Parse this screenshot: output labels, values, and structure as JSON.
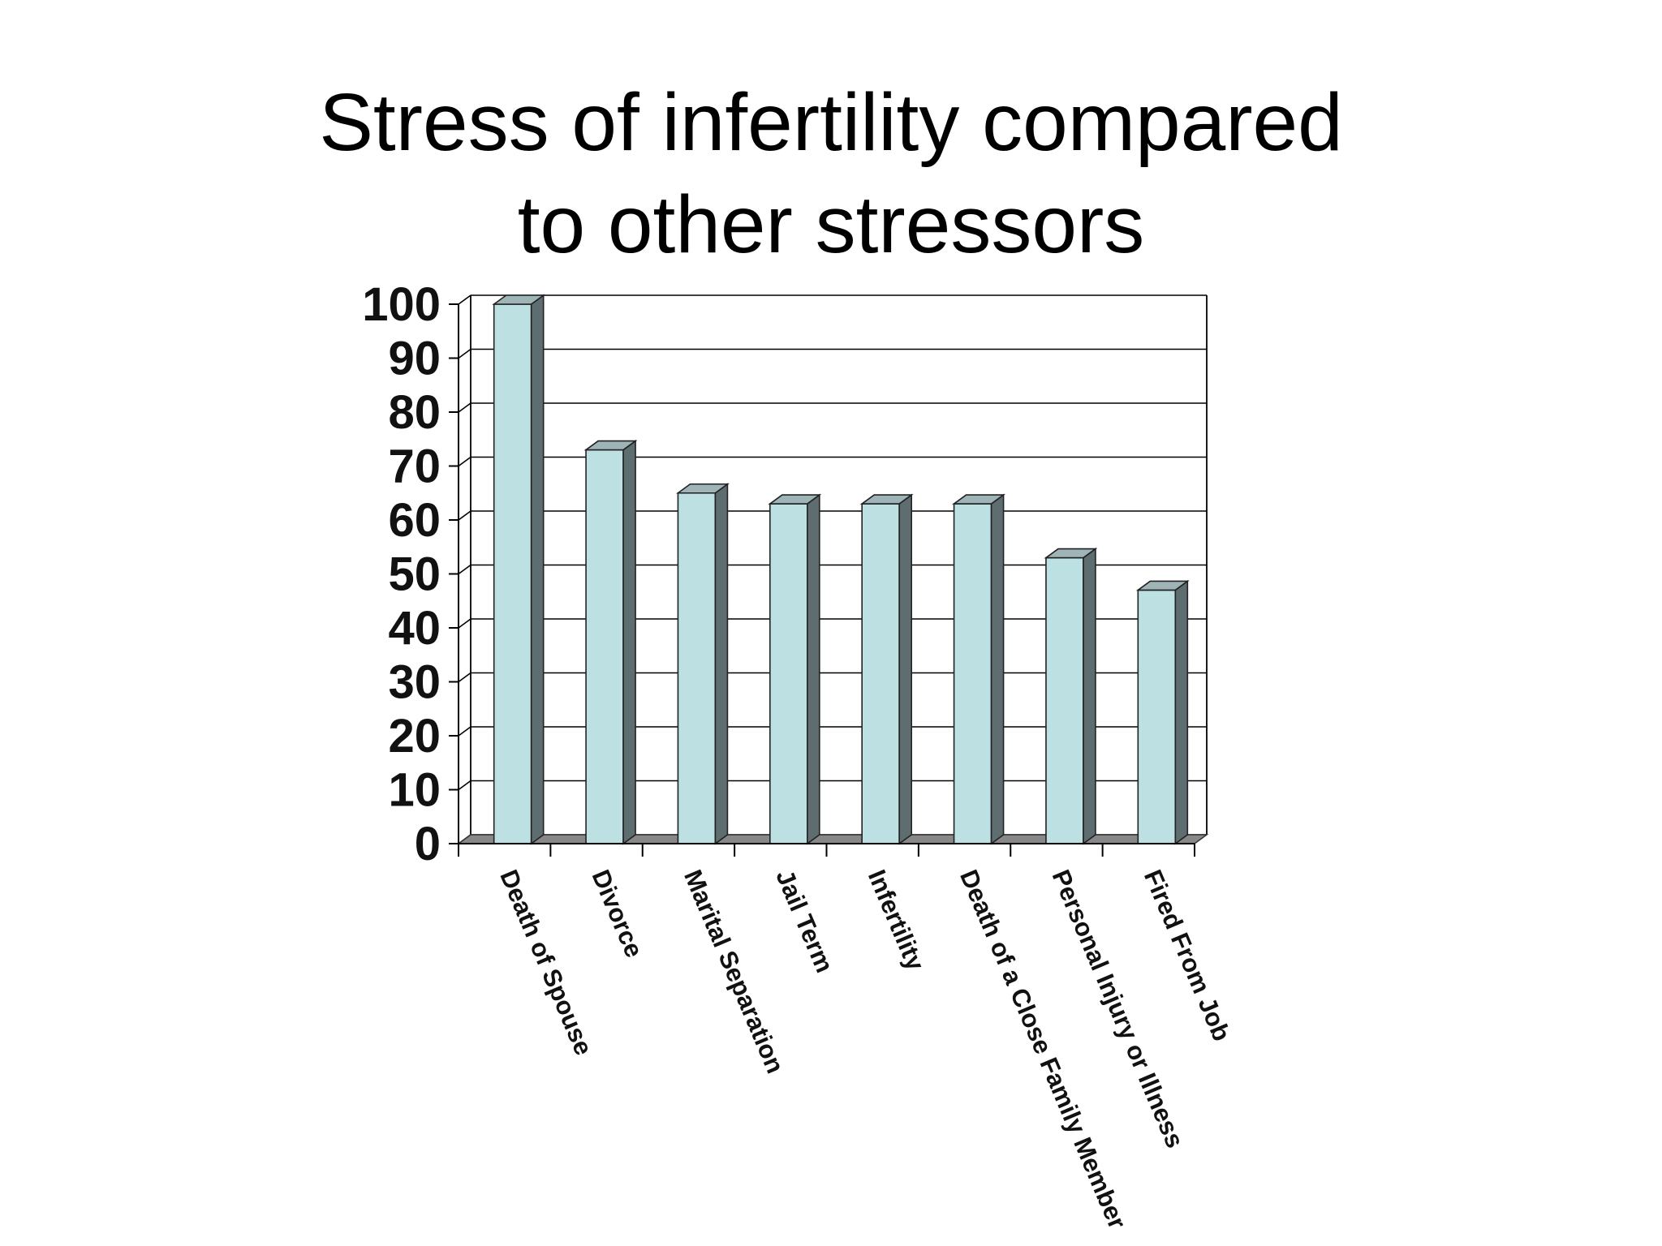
{
  "slide": {
    "title_line1": "Stress of infertility compared",
    "title_line2": "to other stressors"
  },
  "colors": {
    "bar_front": "#bde0e3",
    "bar_side": "#5e6e70",
    "bar_top": "#9fb4b6",
    "floor": "#888888",
    "gridline": "#000000",
    "text": "#111111"
  },
  "chart_data": {
    "type": "bar",
    "style": "3d-column",
    "title": "",
    "xlabel": "",
    "ylabel": "",
    "categories": [
      "Death of Spouse",
      "Divorce",
      "Marital Separation",
      "Jail Term",
      "Infertility",
      "Death of a Close Family Member",
      "Personal Injury or Illness",
      "Fired From Job"
    ],
    "values": [
      100,
      73,
      65,
      63,
      63,
      63,
      53,
      47
    ],
    "ylim": [
      0,
      100
    ],
    "yticks": [
      0,
      10,
      20,
      30,
      40,
      50,
      60,
      70,
      80,
      90,
      100
    ],
    "grid": true,
    "legend": "none"
  }
}
